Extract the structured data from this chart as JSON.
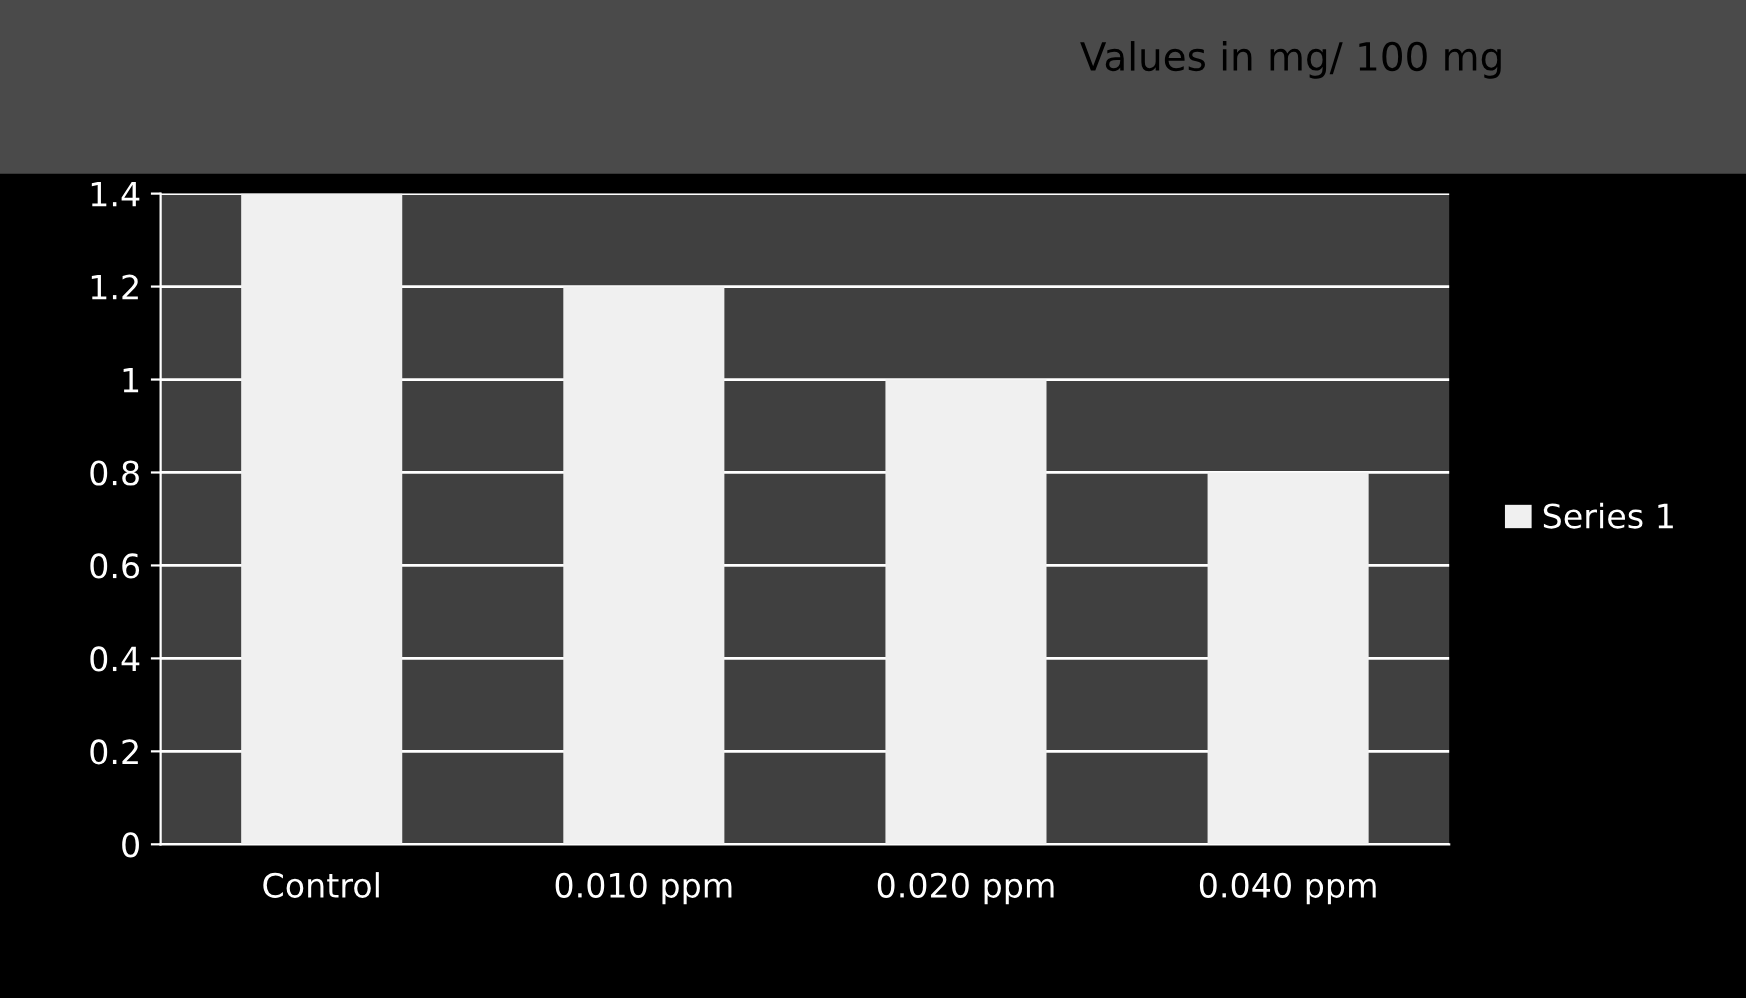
{
  "chart_data": {
    "type": "bar",
    "title": "Values in mg/ 100 mg",
    "categories": [
      "Control",
      "0.010 ppm",
      "0.020 ppm",
      "0.040 ppm"
    ],
    "series": [
      {
        "name": "Series 1",
        "color": "#f0f0f0",
        "values": [
          1.4,
          1.2,
          1.0,
          0.8
        ]
      }
    ],
    "ylim": [
      0,
      1.4
    ],
    "yticks": [
      0,
      0.2,
      0.4,
      0.6,
      0.8,
      1,
      1.2,
      1.4
    ],
    "grid": "y",
    "legend": "right"
  }
}
